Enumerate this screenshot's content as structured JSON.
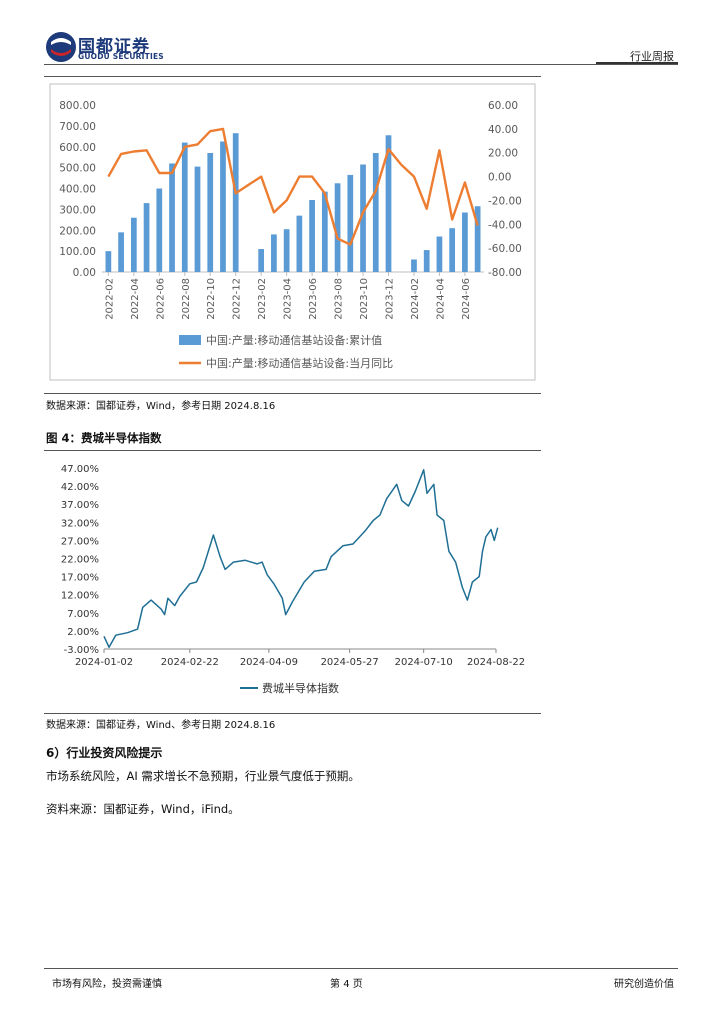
{
  "header": {
    "company_cn": "国都证券",
    "company_en": "GUODU SECURITIES",
    "doc_type": "行业周报"
  },
  "figure3": {
    "source": "数据来源：国都证券，Wind，参考日期 2024.8.16"
  },
  "figure4": {
    "title": "图 4：费城半导体指数",
    "source": "数据来源：国都证券，Wind、参考日期 2024.8.16"
  },
  "section6": {
    "title": "6）行业投资风险提示",
    "paragraph1": "市场系统风险，AI 需求增长不急预期，行业景气度低于预期。",
    "paragraph2": "资料来源：国都证券，Wind，iFind。"
  },
  "footer": {
    "left": "市场有风险，投资需谨慎",
    "page_prefix": "第",
    "page_number": "4",
    "page_suffix": "页",
    "right": "研究创造价值"
  },
  "chart_data": [
    {
      "type": "bar+line",
      "title": "",
      "categories": [
        "2022-02",
        "2022-03",
        "2022-04",
        "2022-05",
        "2022-06",
        "2022-07",
        "2022-08",
        "2022-09",
        "2022-10",
        "2022-11",
        "2022-12",
        "2023-01",
        "2023-02",
        "2023-03",
        "2023-04",
        "2023-05",
        "2023-06",
        "2023-07",
        "2023-08",
        "2023-09",
        "2023-10",
        "2023-11",
        "2023-12",
        "2024-01",
        "2024-02",
        "2024-03",
        "2024-04",
        "2024-05",
        "2024-06",
        "2024-07"
      ],
      "tick_labels": [
        "2022-02",
        "2022-04",
        "2022-06",
        "2022-08",
        "2022-10",
        "2022-12",
        "2023-02",
        "2023-04",
        "2023-06",
        "2023-08",
        "2023-10",
        "2023-12",
        "2024-02",
        "2024-04",
        "2024-06"
      ],
      "series": [
        {
          "name": "中国:产量:移动通信基站设备:累计值",
          "type": "bar",
          "axis": "left",
          "color": "#5b9bd5",
          "values": [
            100,
            190,
            260,
            330,
            400,
            520,
            620,
            505,
            570,
            625,
            665,
            null,
            110,
            180,
            205,
            270,
            345,
            385,
            425,
            465,
            515,
            570,
            655,
            null,
            60,
            105,
            170,
            210,
            285,
            315
          ]
        },
        {
          "name": "中国:产量:移动通信基站设备:当月同比",
          "type": "line",
          "axis": "right",
          "color": "#ed7d31",
          "values": [
            0,
            19,
            21,
            22,
            3,
            3,
            25,
            27,
            38,
            40,
            -14,
            -7,
            0,
            -30,
            -20,
            0,
            0,
            -14,
            -52,
            -57,
            -30,
            -12,
            23,
            10,
            0,
            -27,
            22,
            -36,
            -5,
            -41
          ]
        }
      ],
      "y_left": {
        "min": 0,
        "max": 800,
        "ticks": [
          "0.00",
          "100.00",
          "200.00",
          "300.00",
          "400.00",
          "500.00",
          "600.00",
          "700.00",
          "800.00"
        ]
      },
      "y_right": {
        "min": -80,
        "max": 60,
        "ticks": [
          "-80.00",
          "-60.00",
          "-40.00",
          "-20.00",
          "0.00",
          "20.00",
          "40.00",
          "60.00"
        ]
      },
      "grid": false,
      "legend": "bottom"
    },
    {
      "type": "line",
      "title": "",
      "series": [
        {
          "name": "费城半导体指数",
          "color": "#1f6f95",
          "points": [
            [
              "2024-01-02",
              0.5
            ],
            [
              "2024-01-05",
              -2.5
            ],
            [
              "2024-01-09",
              0.8
            ],
            [
              "2024-01-16",
              1.5
            ],
            [
              "2024-01-22",
              2.5
            ],
            [
              "2024-01-25",
              8.5
            ],
            [
              "2024-01-30",
              10.5
            ],
            [
              "2024-02-05",
              8.0
            ],
            [
              "2024-02-07",
              6.5
            ],
            [
              "2024-02-09",
              11.0
            ],
            [
              "2024-02-13",
              9.0
            ],
            [
              "2024-02-16",
              11.5
            ],
            [
              "2024-02-22",
              15.0
            ],
            [
              "2024-02-26",
              15.5
            ],
            [
              "2024-03-01",
              19.5
            ],
            [
              "2024-03-07",
              28.5
            ],
            [
              "2024-03-11",
              22.5
            ],
            [
              "2024-03-14",
              19.0
            ],
            [
              "2024-03-19",
              21.0
            ],
            [
              "2024-03-26",
              21.5
            ],
            [
              "2024-04-02",
              20.5
            ],
            [
              "2024-04-05",
              21.0
            ],
            [
              "2024-04-08",
              17.5
            ],
            [
              "2024-04-12",
              15.0
            ],
            [
              "2024-04-17",
              11.0
            ],
            [
              "2024-04-19",
              6.5
            ],
            [
              "2024-04-23",
              10.0
            ],
            [
              "2024-04-30",
              15.5
            ],
            [
              "2024-05-06",
              18.5
            ],
            [
              "2024-05-13",
              19.0
            ],
            [
              "2024-05-16",
              22.5
            ],
            [
              "2024-05-23",
              25.5
            ],
            [
              "2024-05-29",
              26.0
            ],
            [
              "2024-06-05",
              29.5
            ],
            [
              "2024-06-10",
              32.5
            ],
            [
              "2024-06-14",
              34.0
            ],
            [
              "2024-06-18",
              38.5
            ],
            [
              "2024-06-24",
              42.5
            ],
            [
              "2024-06-27",
              38.0
            ],
            [
              "2024-07-01",
              36.5
            ],
            [
              "2024-07-05",
              40.5
            ],
            [
              "2024-07-10",
              46.5
            ],
            [
              "2024-07-12",
              40.0
            ],
            [
              "2024-07-16",
              42.5
            ],
            [
              "2024-07-18",
              34.0
            ],
            [
              "2024-07-22",
              32.5
            ],
            [
              "2024-07-25",
              24.0
            ],
            [
              "2024-07-29",
              21.0
            ],
            [
              "2024-08-02",
              14.0
            ],
            [
              "2024-08-05",
              10.5
            ],
            [
              "2024-08-08",
              15.5
            ],
            [
              "2024-08-12",
              17.0
            ],
            [
              "2024-08-14",
              24.0
            ],
            [
              "2024-08-16",
              28.0
            ],
            [
              "2024-08-19",
              30.0
            ],
            [
              "2024-08-21",
              27.0
            ],
            [
              "2024-08-23",
              30.5
            ]
          ]
        }
      ],
      "x_ticks": [
        "2024-01-02",
        "2024-02-22",
        "2024-04-09",
        "2024-05-27",
        "2024-07-10",
        "2024-08-22"
      ],
      "y": {
        "min": -3,
        "max": 47,
        "ticks": [
          "-3.00%",
          "2.00%",
          "7.00%",
          "12.00%",
          "17.00%",
          "22.00%",
          "27.00%",
          "32.00%",
          "37.00%",
          "42.00%",
          "47.00%"
        ]
      },
      "grid": false,
      "legend": "bottom"
    }
  ]
}
